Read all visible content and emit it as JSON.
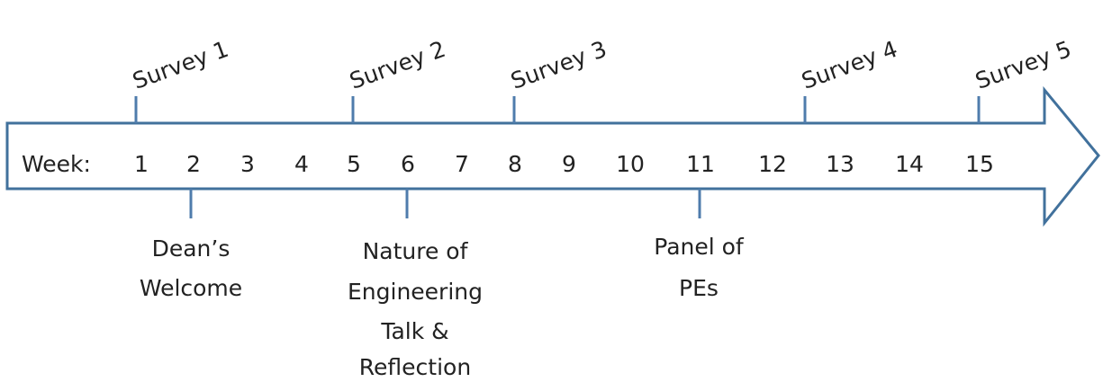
{
  "timeline": {
    "week_label": "Week:",
    "weeks": [
      "1",
      "2",
      "3",
      "4",
      "5",
      "6",
      "7",
      "8",
      "9",
      "10",
      "11",
      "12",
      "13",
      "14",
      "15"
    ],
    "surveys": [
      "Survey 1",
      "Survey 2",
      "Survey 3",
      "Survey 4",
      "Survey 5"
    ],
    "events": [
      {
        "lines": [
          "Dean’s",
          "Welcome"
        ]
      },
      {
        "lines": [
          "Nature of",
          "Engineering",
          "Talk &",
          "Reflection"
        ]
      },
      {
        "lines": [
          "Panel of",
          "PEs"
        ]
      }
    ]
  }
}
